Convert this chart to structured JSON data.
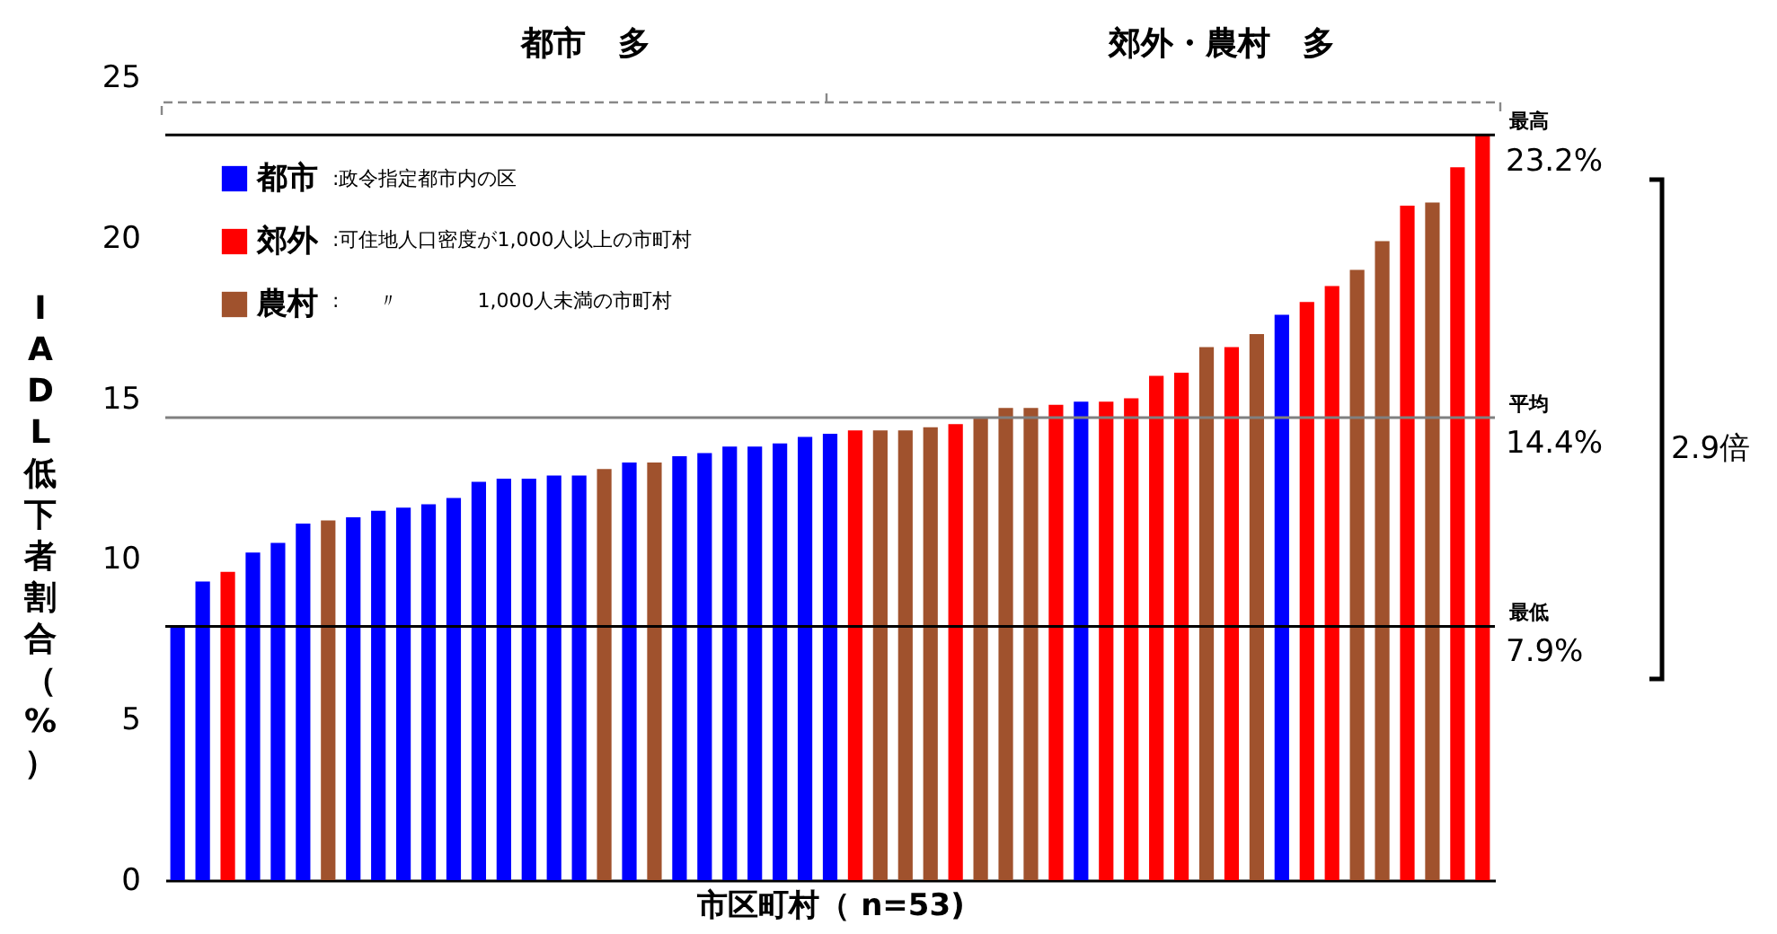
{
  "chart_data": {
    "type": "bar",
    "xlabel": "市区町村（ n=53)",
    "ylabel": "IADL低下者割合（%）",
    "categories": [
      null,
      null,
      null,
      null,
      null,
      null,
      null,
      null,
      null,
      null,
      null,
      null,
      null,
      null,
      null,
      null,
      null,
      null,
      null,
      null,
      null,
      null,
      null,
      null,
      null,
      null,
      null,
      null,
      null,
      null,
      null,
      null,
      null,
      null,
      null,
      null,
      null,
      null,
      null,
      null,
      null,
      null,
      null,
      null,
      null,
      null,
      null,
      null,
      null,
      null,
      null,
      null,
      null
    ],
    "series": [
      {
        "name": "都市",
        "color": "#0000ff",
        "values": [
          7.9,
          9.3,
          null,
          10.2,
          10.5,
          11.1,
          null,
          11.3,
          11.5,
          11.6,
          11.7,
          11.9,
          12.4,
          12.5,
          12.5,
          12.6,
          12.6,
          null,
          13.0,
          null,
          13.2,
          13.3,
          13.5,
          13.5,
          13.6,
          13.8,
          13.9,
          null,
          null,
          null,
          null,
          null,
          null,
          null,
          null,
          null,
          14.9,
          null,
          null,
          null,
          null,
          null,
          null,
          null,
          17.6,
          null,
          null,
          null,
          null,
          null,
          null,
          null,
          null
        ]
      },
      {
        "name": "郊外",
        "color": "#ff0000",
        "values": [
          null,
          null,
          9.6,
          null,
          null,
          null,
          null,
          null,
          null,
          null,
          null,
          null,
          null,
          null,
          null,
          null,
          null,
          null,
          null,
          null,
          null,
          null,
          null,
          null,
          null,
          null,
          null,
          14.0,
          null,
          null,
          null,
          14.2,
          null,
          null,
          null,
          14.8,
          null,
          14.9,
          15.0,
          15.7,
          15.8,
          null,
          16.6,
          null,
          null,
          18.0,
          18.5,
          null,
          null,
          21.0,
          null,
          22.2,
          23.2
        ]
      },
      {
        "name": "農村",
        "color": "#a0522d",
        "values": [
          null,
          null,
          null,
          null,
          null,
          null,
          11.2,
          null,
          null,
          null,
          null,
          null,
          null,
          null,
          null,
          null,
          null,
          12.8,
          null,
          13.0,
          null,
          null,
          null,
          null,
          null,
          null,
          null,
          null,
          14.0,
          14.0,
          14.1,
          null,
          14.4,
          14.7,
          14.7,
          null,
          null,
          null,
          null,
          null,
          null,
          16.6,
          null,
          17.0,
          null,
          null,
          null,
          19.0,
          19.9,
          null,
          21.1,
          null,
          null
        ]
      }
    ],
    "ylim": [
      0,
      25
    ],
    "yticks": [
      0,
      5,
      10,
      15,
      20,
      25
    ],
    "tick_labels": "y",
    "legend": "top left",
    "ref_lines": [
      {
        "axis": "y",
        "value": 23.2,
        "label": "最高",
        "color": "#000000"
      },
      {
        "axis": "y",
        "value": 14.4,
        "label": "平均",
        "color": "#808080"
      },
      {
        "axis": "y",
        "value": 7.9,
        "label": "最低",
        "color": "#000000"
      }
    ],
    "annotations": [
      "23.2%",
      "14.4%",
      "7.9%",
      "都市　多",
      "郊外・農村　多",
      ":政令指定都市内の区",
      ":可住地人口密度が1,000人以上の市町村",
      ":　　〃　　　　1,000人未満の市町村",
      "2.9倍"
    ]
  }
}
